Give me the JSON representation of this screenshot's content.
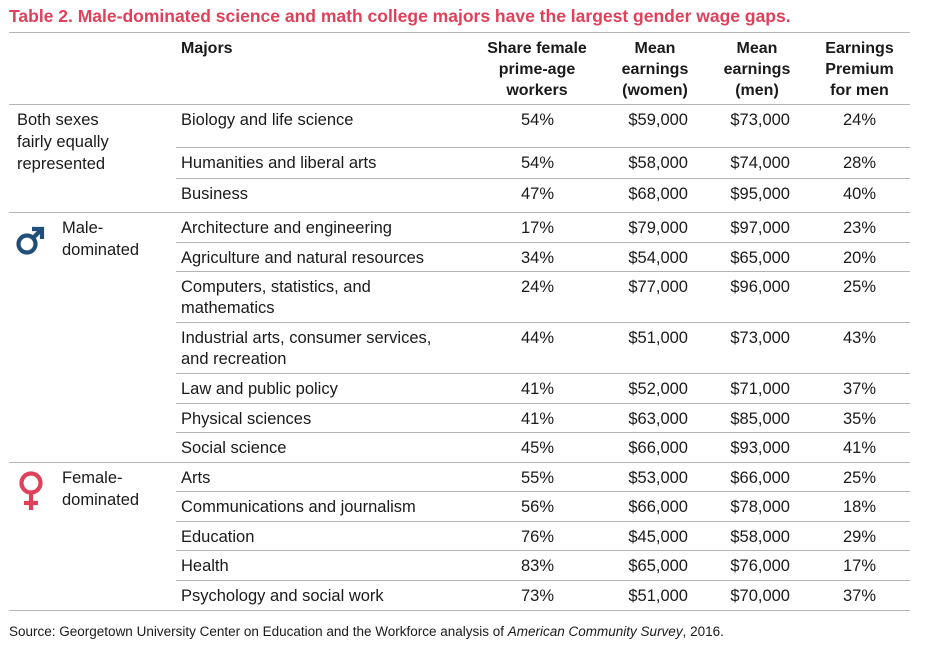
{
  "title": "Table 2. Male-dominated science and math college majors have the largest gender wage gaps.",
  "headers": {
    "majors": "Majors",
    "share_female": "Share female\nprime-age\nworkers",
    "mean_women": "Mean\nearnings\n(women)",
    "mean_men": "Mean\nearnings\n(men)",
    "premium": "Earnings\nPremium\nfor men"
  },
  "groups": [
    {
      "label": "Both sexes\nfairly equally\nrepresented",
      "icon": "none"
    },
    {
      "label": "Male-\ndominated",
      "icon": "male-symbol",
      "color": "#1f4e79"
    },
    {
      "label": "Female-\ndominated",
      "icon": "female-symbol",
      "color": "#e0405a"
    }
  ],
  "chart_data": {
    "type": "table",
    "title": "Table 2. Male-dominated science and math college majors have the largest gender wage gaps.",
    "columns": [
      "Majors",
      "Share female prime-age workers",
      "Mean earnings (women)",
      "Mean earnings (men)",
      "Earnings Premium for men"
    ],
    "rows": [
      {
        "group": 0,
        "major": "Biology and life science",
        "share": "54%",
        "women": "$59,000",
        "men": "$73,000",
        "premium": "24%"
      },
      {
        "group": 0,
        "major": "Humanities and liberal arts",
        "share": "54%",
        "women": "$58,000",
        "men": "$74,000",
        "premium": "28%"
      },
      {
        "group": 0,
        "major": "Business",
        "share": "47%",
        "women": "$68,000",
        "men": "$95,000",
        "premium": "40%"
      },
      {
        "group": 1,
        "major": "Architecture and engineering",
        "share": "17%",
        "women": "$79,000",
        "men": "$97,000",
        "premium": "23%"
      },
      {
        "group": 1,
        "major": "Agriculture and natural resources",
        "share": "34%",
        "women": "$54,000",
        "men": "$65,000",
        "premium": "20%"
      },
      {
        "group": 1,
        "major": "Computers, statistics, and\nmathematics",
        "share": "24%",
        "women": "$77,000",
        "men": "$96,000",
        "premium": "25%"
      },
      {
        "group": 1,
        "major": "Industrial arts, consumer services,\nand recreation",
        "share": "44%",
        "women": "$51,000",
        "men": "$73,000",
        "premium": "43%"
      },
      {
        "group": 1,
        "major": "Law and public policy",
        "share": "41%",
        "women": "$52,000",
        "men": "$71,000",
        "premium": "37%"
      },
      {
        "group": 1,
        "major": "Physical sciences",
        "share": "41%",
        "women": "$63,000",
        "men": "$85,000",
        "premium": "35%"
      },
      {
        "group": 1,
        "major": "Social science",
        "share": "45%",
        "women": "$66,000",
        "men": "$93,000",
        "premium": "41%"
      },
      {
        "group": 2,
        "major": "Arts",
        "share": "55%",
        "women": "$53,000",
        "men": "$66,000",
        "premium": "25%"
      },
      {
        "group": 2,
        "major": "Communications and journalism",
        "share": "56%",
        "women": "$66,000",
        "men": "$78,000",
        "premium": "18%"
      },
      {
        "group": 2,
        "major": "Education",
        "share": "76%",
        "women": "$45,000",
        "men": "$58,000",
        "premium": "29%"
      },
      {
        "group": 2,
        "major": "Health",
        "share": "83%",
        "women": "$65,000",
        "men": "$76,000",
        "premium": "17%"
      },
      {
        "group": 2,
        "major": "Psychology and social work",
        "share": "73%",
        "women": "$51,000",
        "men": "$70,000",
        "premium": "37%"
      }
    ]
  },
  "source": {
    "prefix": "Source: Georgetown University Center on Education and the Workforce analysis of ",
    "italic": "American Community Survey",
    "suffix": ", 2016."
  },
  "colors": {
    "title": "#e0405a",
    "male": "#1f4e79",
    "female": "#e0405a",
    "rule": "#b5b5b5"
  }
}
